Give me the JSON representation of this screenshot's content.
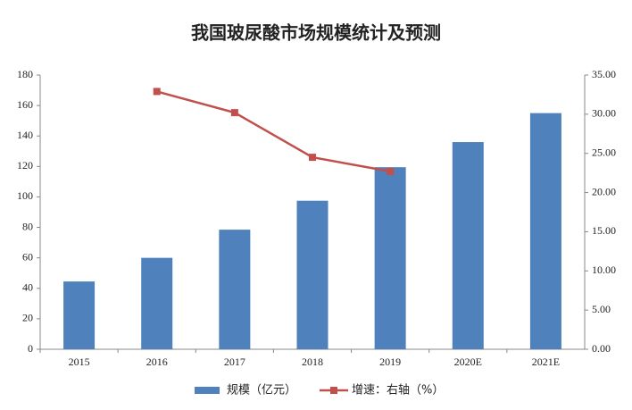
{
  "chart_data": {
    "type": "bar",
    "title": "我国玻尿酸市场规模统计及预测",
    "categories": [
      "2015",
      "2016",
      "2017",
      "2018",
      "2019",
      "2020E",
      "2021E"
    ],
    "series": [
      {
        "name": "规模（亿元）",
        "type": "bar",
        "color": "#4f81bd",
        "values": [
          44.5,
          60,
          78.5,
          97.5,
          119.5,
          136,
          155
        ]
      },
      {
        "name": "增速：右轴（%）",
        "type": "line",
        "axis": "y2",
        "color": "#c0504d",
        "values": [
          null,
          32.9,
          30.2,
          24.5,
          22.7,
          null,
          null
        ]
      }
    ],
    "ylim": [
      0,
      180
    ],
    "yticks": [
      0,
      20,
      40,
      60,
      80,
      100,
      120,
      140,
      160,
      180
    ],
    "y2lim": [
      0,
      35
    ],
    "y2ticks": [
      {
        "value": 0,
        "label": "0.00"
      },
      {
        "value": 5,
        "label": "5.00"
      },
      {
        "value": 10,
        "label": "10.00"
      },
      {
        "value": 15,
        "label": "15.00"
      },
      {
        "value": 20,
        "label": "20.00"
      },
      {
        "value": 25,
        "label": "25.00"
      },
      {
        "value": 30,
        "label": "30.00"
      },
      {
        "value": 35,
        "label": "35.00"
      }
    ],
    "grid": false
  }
}
